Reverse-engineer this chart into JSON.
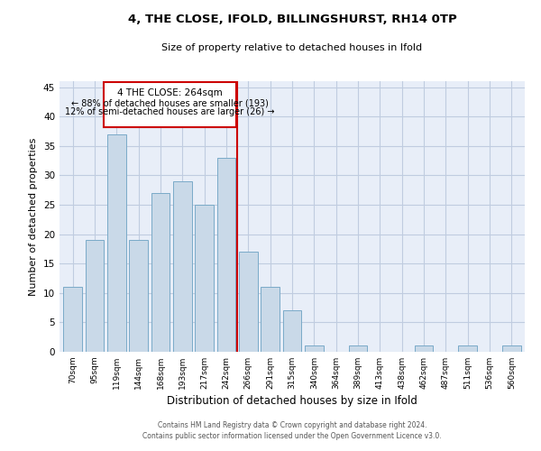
{
  "title": "4, THE CLOSE, IFOLD, BILLINGSHURST, RH14 0TP",
  "subtitle": "Size of property relative to detached houses in Ifold",
  "xlabel": "Distribution of detached houses by size in Ifold",
  "ylabel": "Number of detached properties",
  "categories": [
    "70sqm",
    "95sqm",
    "119sqm",
    "144sqm",
    "168sqm",
    "193sqm",
    "217sqm",
    "242sqm",
    "266sqm",
    "291sqm",
    "315sqm",
    "340sqm",
    "364sqm",
    "389sqm",
    "413sqm",
    "438sqm",
    "462sqm",
    "487sqm",
    "511sqm",
    "536sqm",
    "560sqm"
  ],
  "values": [
    11,
    19,
    37,
    19,
    27,
    29,
    25,
    33,
    17,
    11,
    7,
    1,
    0,
    1,
    0,
    0,
    1,
    0,
    1,
    0,
    1
  ],
  "bar_color": "#c9d9e8",
  "bar_edge_color": "#7aaac8",
  "property_line_idx": 8,
  "property_line_label": "4 THE CLOSE: 264sqm",
  "annotation_line1": "← 88% of detached houses are smaller (193)",
  "annotation_line2": "12% of semi-detached houses are larger (26) →",
  "annotation_box_color": "#cc0000",
  "vline_color": "#cc0000",
  "ylim": [
    0,
    46
  ],
  "yticks": [
    0,
    5,
    10,
    15,
    20,
    25,
    30,
    35,
    40,
    45
  ],
  "grid_color": "#c0cce0",
  "bg_color": "#e8eef8",
  "footer1": "Contains HM Land Registry data © Crown copyright and database right 2024.",
  "footer2": "Contains public sector information licensed under the Open Government Licence v3.0."
}
